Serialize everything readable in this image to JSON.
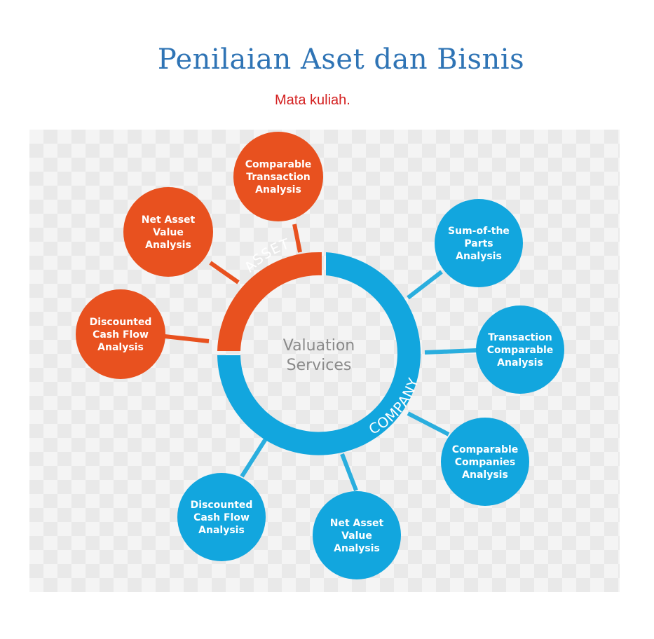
{
  "header": {
    "title": "Penilaian Aset dan Bisnis",
    "subtitle": "Mata kuliah."
  },
  "diagram": {
    "center": [
      "Valuation",
      "Services"
    ],
    "colors": {
      "asset": "#e8511f",
      "company": "#12a6de",
      "connector_asset": "#e8511f",
      "connector_company": "#2aaede"
    },
    "groups": {
      "asset": {
        "label": "ASSET",
        "nodes": [
          {
            "lines": [
              "Comparable",
              "Transaction",
              "Analysis"
            ]
          },
          {
            "lines": [
              "Net Asset",
              "Value",
              "Analysis"
            ]
          },
          {
            "lines": [
              "Discounted",
              "Cash Flow",
              "Analysis"
            ]
          }
        ]
      },
      "company": {
        "label": "COMPANY",
        "nodes": [
          {
            "lines": [
              "Sum-of-the",
              "Parts",
              "Analysis"
            ]
          },
          {
            "lines": [
              "Transaction",
              "Comparable",
              "Analysis"
            ]
          },
          {
            "lines": [
              "Comparable",
              "Companies",
              "Analysis"
            ]
          },
          {
            "lines": [
              "Net Asset",
              "Value",
              "Analysis"
            ]
          },
          {
            "lines": [
              "Discounted",
              "Cash Flow",
              "Analysis"
            ]
          }
        ]
      }
    }
  }
}
